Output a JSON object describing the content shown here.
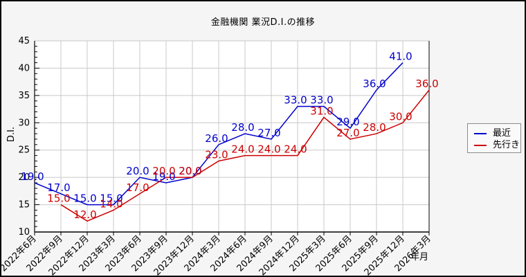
{
  "chart_data": {
    "type": "line",
    "title": "金融機関 業況D.I.の推移",
    "xlabel": "年月",
    "ylabel": "D.I.",
    "ylim": [
      10,
      45
    ],
    "ytick_step": 5,
    "grid": true,
    "legend_position": "outside-right",
    "value_label_decimals": 1,
    "categories": [
      "2022年6月",
      "2022年9月",
      "2022年12月",
      "2023年3月",
      "2023年6月",
      "2023年9月",
      "2023年12月",
      "2024年3月",
      "2024年6月",
      "2024年9月",
      "2024年12月",
      "2025年3月",
      "2025年6月",
      "2025年9月",
      "2025年12月",
      "2026年3月"
    ],
    "series": [
      {
        "name": "最近",
        "color": "#0000cc",
        "values": [
          19,
          17,
          15,
          15,
          20,
          19,
          20,
          26,
          28,
          27,
          33,
          33,
          29,
          36,
          41,
          null
        ]
      },
      {
        "name": "先行き",
        "color": "#cc0000",
        "values": [
          null,
          15,
          12,
          14,
          17,
          20,
          20,
          23,
          24,
          24,
          24,
          31,
          27,
          28,
          30,
          36
        ]
      }
    ]
  },
  "colors": {
    "background": "#f5f5f5",
    "plot_background": "#ffffff",
    "grid": "#c8c8c8",
    "axis": "#000000",
    "legend_border": "#8a8a8a"
  }
}
